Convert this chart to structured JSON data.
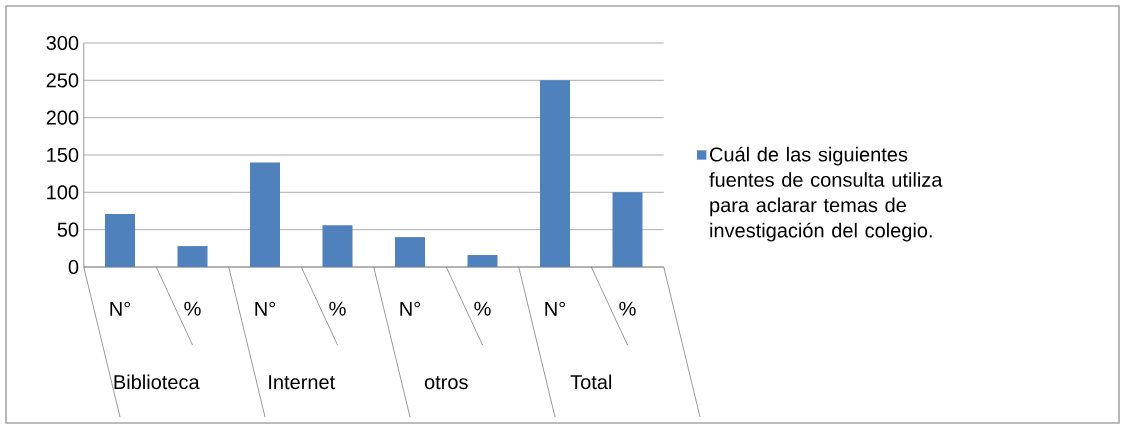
{
  "chart_data": {
    "type": "bar",
    "categories": [
      "N°",
      "%",
      "N°",
      "%",
      "N°",
      "%",
      "N°",
      "%"
    ],
    "series": [
      {
        "name": "Cuál de las siguientes fuentes de consulta utiliza para aclarar temas de investigación del colegio.",
        "color": "#4f81bd",
        "values": [
          71,
          28,
          140,
          56,
          40,
          16,
          250,
          100
        ]
      }
    ],
    "annotations": [
      "Biblioteca",
      "Internet",
      "otros",
      "Total"
    ],
    "ylim": [
      0,
      300
    ],
    "yticks": [
      0,
      50,
      100,
      150,
      200,
      250,
      300
    ],
    "grid": "y",
    "legend": "right"
  }
}
